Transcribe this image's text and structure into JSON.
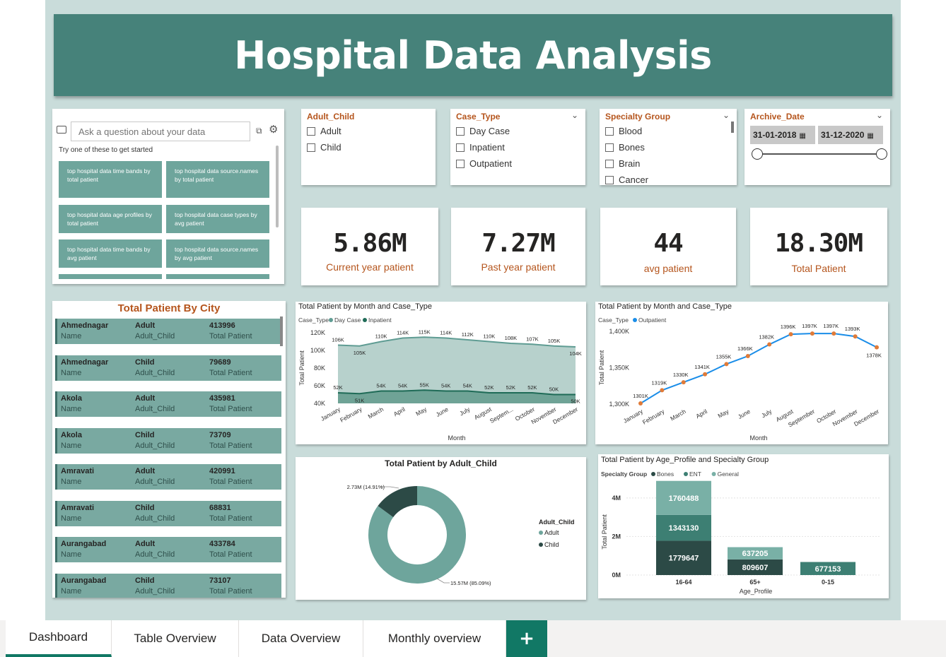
{
  "title": "Hospital Data Analysis",
  "qa": {
    "placeholder": "Ask a question about your data",
    "hint": "Try one of these to get started",
    "suggestions": [
      "top hospital data time bands by total patient",
      "top hospital data source.names by total patient",
      "top hospital data age profiles by total patient",
      "top hospital data case types by avg patient",
      "top hospital data time bands by avg patient",
      "top hospital data source.names by avg patient"
    ]
  },
  "slicers": {
    "adult_child": {
      "title": "Adult_Child",
      "items": [
        "Adult",
        "Child"
      ]
    },
    "case_type": {
      "title": "Case_Type",
      "items": [
        "Day Case",
        "Inpatient",
        "Outpatient"
      ]
    },
    "specialty": {
      "title": "Specialty Group",
      "items": [
        "Blood",
        "Bones",
        "Brain",
        "Cancer"
      ]
    },
    "archive": {
      "title": "Archive_Date",
      "start": "31-01-2018",
      "end": "31-12-2020"
    }
  },
  "kpis": [
    {
      "value": "5.86M",
      "label": "Current year patient"
    },
    {
      "value": "7.27M",
      "label": "Past year patient"
    },
    {
      "value": "44",
      "label": "avg patient"
    },
    {
      "value": "18.30M",
      "label": "Total Patient"
    }
  ],
  "city_table": {
    "title": "Total Patient By City",
    "sub_name": "Name",
    "sub_group": "Adult_Child",
    "sub_value": "Total Patient",
    "rows": [
      {
        "name": "Ahmednagar",
        "group": "Adult",
        "value": "413996"
      },
      {
        "name": "Ahmednagar",
        "group": "Child",
        "value": "79689"
      },
      {
        "name": "Akola",
        "group": "Adult",
        "value": "435981"
      },
      {
        "name": "Akola",
        "group": "Child",
        "value": "73709"
      },
      {
        "name": "Amravati",
        "group": "Adult",
        "value": "420991"
      },
      {
        "name": "Amravati",
        "group": "Child",
        "value": "68831"
      },
      {
        "name": "Aurangabad",
        "group": "Adult",
        "value": "433784"
      },
      {
        "name": "Aurangabad",
        "group": "Child",
        "value": "73107"
      }
    ]
  },
  "chart_data": [
    {
      "type": "area",
      "title": "Total Patient by Month and Case_Type",
      "legend_title": "Case_Type",
      "xlabel": "Month",
      "ylabel": "Total Patient",
      "ylim": [
        40000,
        120000
      ],
      "yticks": [
        "40K",
        "60K",
        "80K",
        "100K",
        "120K"
      ],
      "categories": [
        "January",
        "February",
        "March",
        "April",
        "May",
        "June",
        "July",
        "August",
        "Septem...",
        "October",
        "November",
        "December"
      ],
      "series": [
        {
          "name": "Day Case",
          "color": "#5f9c93",
          "values": [
            106000,
            105000,
            110000,
            114000,
            115000,
            114000,
            112000,
            110000,
            108000,
            107000,
            105000,
            104000
          ],
          "labels": [
            "106K",
            "105K",
            "110K",
            "114K",
            "115K",
            "114K",
            "112K",
            "110K",
            "108K",
            "107K",
            "105K",
            "104K"
          ]
        },
        {
          "name": "Inpatient",
          "color": "#1f6b57",
          "values": [
            52000,
            51000,
            54000,
            54000,
            55000,
            54000,
            54000,
            52000,
            52000,
            52000,
            50000,
            50000
          ],
          "labels": [
            "52K",
            "51K",
            "54K",
            "54K",
            "55K",
            "54K",
            "54K",
            "52K",
            "52K",
            "52K",
            "50K",
            "50K"
          ]
        }
      ]
    },
    {
      "type": "line",
      "title": "Total Patient by Month and Case_Type",
      "legend_title": "Case_Type",
      "xlabel": "Month",
      "ylabel": "Total Patient",
      "ylim": [
        1300000,
        1400000
      ],
      "yticks": [
        "1,300K",
        "1,350K",
        "1,400K"
      ],
      "categories": [
        "January",
        "February",
        "March",
        "April",
        "May",
        "June",
        "July",
        "August",
        "September",
        "October",
        "November",
        "December"
      ],
      "series": [
        {
          "name": "Outpatient",
          "color": "#1a8de8",
          "values": [
            1301000,
            1319000,
            1330000,
            1341000,
            1355000,
            1366000,
            1382000,
            1396000,
            1397000,
            1397000,
            1393000,
            1378000
          ],
          "labels": [
            "1301K",
            "1319K",
            "1330K",
            "1341K",
            "1355K",
            "1366K",
            "1382K",
            "1396K",
            "1397K",
            "1397K",
            "1393K",
            "1378K"
          ]
        }
      ]
    },
    {
      "type": "pie",
      "title": "Total Patient by Adult_Child",
      "legend_title": "Adult_Child",
      "slices": [
        {
          "name": "Adult",
          "value": 15570000,
          "label": "15.57M (85.09%)",
          "color": "#6ea59c"
        },
        {
          "name": "Child",
          "value": 2730000,
          "label": "2.73M (14.91%)",
          "color": "#2c4a46"
        }
      ]
    },
    {
      "type": "bar",
      "title": "Total Patient by Age_Profile and Specialty Group",
      "legend_title": "Specialty Group",
      "xlabel": "Age_Profile",
      "ylabel": "Total Patient",
      "ylim": [
        0,
        4800000
      ],
      "yticks": [
        "0M",
        "2M",
        "4M"
      ],
      "categories": [
        "16-64",
        "65+",
        "0-15"
      ],
      "series": [
        {
          "name": "Bones",
          "color": "#2c4a46",
          "values": [
            1779647,
            809607,
            0
          ],
          "labels": [
            "1779647",
            "809607",
            ""
          ]
        },
        {
          "name": "ENT",
          "color": "#3d7f73",
          "values": [
            1343130,
            0,
            677153
          ],
          "labels": [
            "1343130",
            "",
            "677153"
          ]
        },
        {
          "name": "General",
          "color": "#79b0a6",
          "values": [
            1760488,
            637205,
            0
          ],
          "labels": [
            "1760488",
            "637205",
            ""
          ]
        }
      ]
    }
  ],
  "tabs": [
    "Dashboard",
    "Table Overview",
    "Data Overview",
    "Monthly overview"
  ],
  "add_tab": "+"
}
